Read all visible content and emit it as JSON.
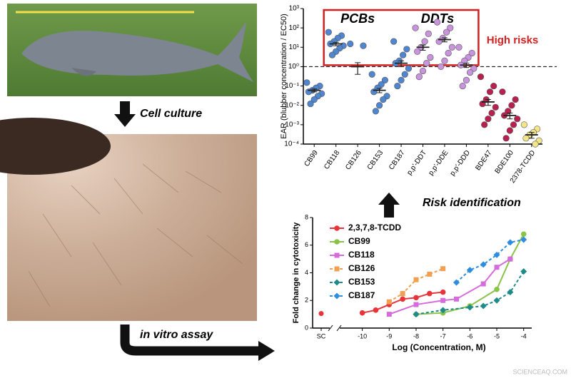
{
  "labels": {
    "step1": "Cell culture",
    "step2": "in vitro assay",
    "step3": "Risk identification",
    "watermark": "SCIENCEAQ.COM"
  },
  "chart_data": [
    {
      "type": "strip",
      "y_label": "EAR (blubber concentration / EC50)",
      "categories": [
        "CB99",
        "CB118",
        "CB126",
        "CB153",
        "CB187",
        "p,p'-DDT",
        "p,p'-DDE",
        "p,p'-DDD",
        "BDE47",
        "BDE100",
        "2378-TCDD"
      ],
      "colors": [
        "#4f86cf",
        "#4f86cf",
        "#4f86cf",
        "#4f86cf",
        "#4f86cf",
        "#c894dd",
        "#c894dd",
        "#c894dd",
        "#b8204f",
        "#b8204f",
        "#f3e58a"
      ],
      "points": [
        [
          0.15,
          0.1,
          0.08,
          0.06,
          0.05,
          0.04,
          0.03,
          0.02,
          0.012
        ],
        [
          60,
          40,
          30,
          20,
          15,
          12,
          9,
          6,
          4
        ],
        [
          15,
          12
        ],
        [
          0.4,
          0.2,
          0.12,
          0.08,
          0.05,
          0.03,
          0.02,
          0.01,
          0.005
        ],
        [
          20,
          8,
          4,
          2,
          1.5,
          0.8,
          0.4,
          0.2,
          0.1
        ],
        [
          100,
          50,
          20,
          10,
          6,
          3,
          1.5,
          0.6,
          0.3
        ],
        [
          200,
          100,
          60,
          30,
          20,
          10,
          5,
          2,
          1
        ],
        [
          10,
          5,
          3,
          2,
          1.2,
          0.8,
          0.5,
          0.2,
          0.1
        ],
        [
          0.3,
          0.1,
          0.05,
          0.02,
          0.012,
          0.008,
          0.004,
          0.002,
          0.001
        ],
        [
          0.05,
          0.02,
          0.01,
          0.005,
          0.003,
          0.002,
          0.001,
          0.0005,
          0.0002
        ],
        [
          0.001,
          0.0006,
          0.0004,
          0.0003,
          0.0002,
          0.00015,
          0.0001
        ]
      ],
      "means": [
        0.06,
        15,
        1,
        0.06,
        1.5,
        10,
        25,
        1.2,
        0.015,
        0.003,
        0.0003
      ],
      "sem": [
        0.01,
        3,
        0.6,
        0.015,
        0.5,
        3,
        6,
        0.3,
        0.005,
        0.001,
        0.0001
      ],
      "log_scale": true,
      "ylim": [
        0.0001,
        1000
      ],
      "yticks": [
        {
          "value": 0.0001,
          "label": "10⁻⁴"
        },
        {
          "value": 0.001,
          "label": "10⁻³"
        },
        {
          "value": 0.01,
          "label": "10⁻²"
        },
        {
          "value": 0.1,
          "label": "10⁻¹"
        },
        {
          "value": 1,
          "label": "10⁰"
        },
        {
          "value": 10,
          "label": "10¹"
        },
        {
          "value": 100,
          "label": "10²"
        },
        {
          "value": 1000,
          "label": "10³"
        }
      ],
      "threshold": 1,
      "annotations": [
        "PCBs",
        "DDTs",
        "High risks"
      ]
    },
    {
      "type": "line",
      "x_label": "Log (Concentration, M)",
      "y_label": "Fold change in cytotoxicity",
      "control": {
        "label": "SC",
        "value": 1.05
      },
      "xlim": [
        -10.6,
        -3.7
      ],
      "xticks": [
        -10,
        -9,
        -8,
        -7,
        -6,
        -5,
        -4
      ],
      "ylim": [
        0,
        8
      ],
      "yticks": [
        0,
        2,
        4,
        6,
        8
      ],
      "series": [
        {
          "name": "2,3,7,8-TCDD",
          "color": "#e8333a",
          "marker": "circle",
          "dashed": false,
          "x": [
            -10,
            -9.5,
            -9,
            -8.5,
            -8,
            -7.5,
            -7
          ],
          "values": [
            1.1,
            1.3,
            1.7,
            2.1,
            2.2,
            2.5,
            2.6
          ]
        },
        {
          "name": "CB99",
          "color": "#8bc34a",
          "marker": "circle",
          "dashed": false,
          "x": [
            -8,
            -7,
            -6,
            -5,
            -4.5,
            -4
          ],
          "values": [
            1.0,
            1.1,
            1.6,
            2.8,
            5.0,
            6.8
          ]
        },
        {
          "name": "CB118",
          "color": "#d66bdc",
          "marker": "square",
          "dashed": false,
          "x": [
            -9,
            -8,
            -7,
            -6.5,
            -5.5,
            -5,
            -4.5
          ],
          "values": [
            1.0,
            1.7,
            2.0,
            2.1,
            3.2,
            4.4,
            5.0
          ]
        },
        {
          "name": "CB126",
          "color": "#f0a050",
          "marker": "square",
          "dashed": true,
          "x": [
            -9,
            -8.5,
            -8,
            -7.5,
            -7
          ],
          "values": [
            1.9,
            2.5,
            3.5,
            3.9,
            4.3
          ]
        },
        {
          "name": "CB153",
          "color": "#1f8a8a",
          "marker": "diamond",
          "dashed": true,
          "x": [
            -8,
            -7,
            -6,
            -5.5,
            -5,
            -4.5,
            -4
          ],
          "values": [
            1.0,
            1.3,
            1.5,
            1.6,
            2.0,
            2.6,
            4.1
          ]
        },
        {
          "name": "CB187",
          "color": "#2f8de0",
          "marker": "diamond",
          "dashed": true,
          "x": [
            -6.5,
            -6,
            -5.5,
            -5,
            -4.5,
            -4
          ],
          "values": [
            3.3,
            4.2,
            4.6,
            5.3,
            6.2,
            6.4
          ]
        }
      ]
    }
  ]
}
